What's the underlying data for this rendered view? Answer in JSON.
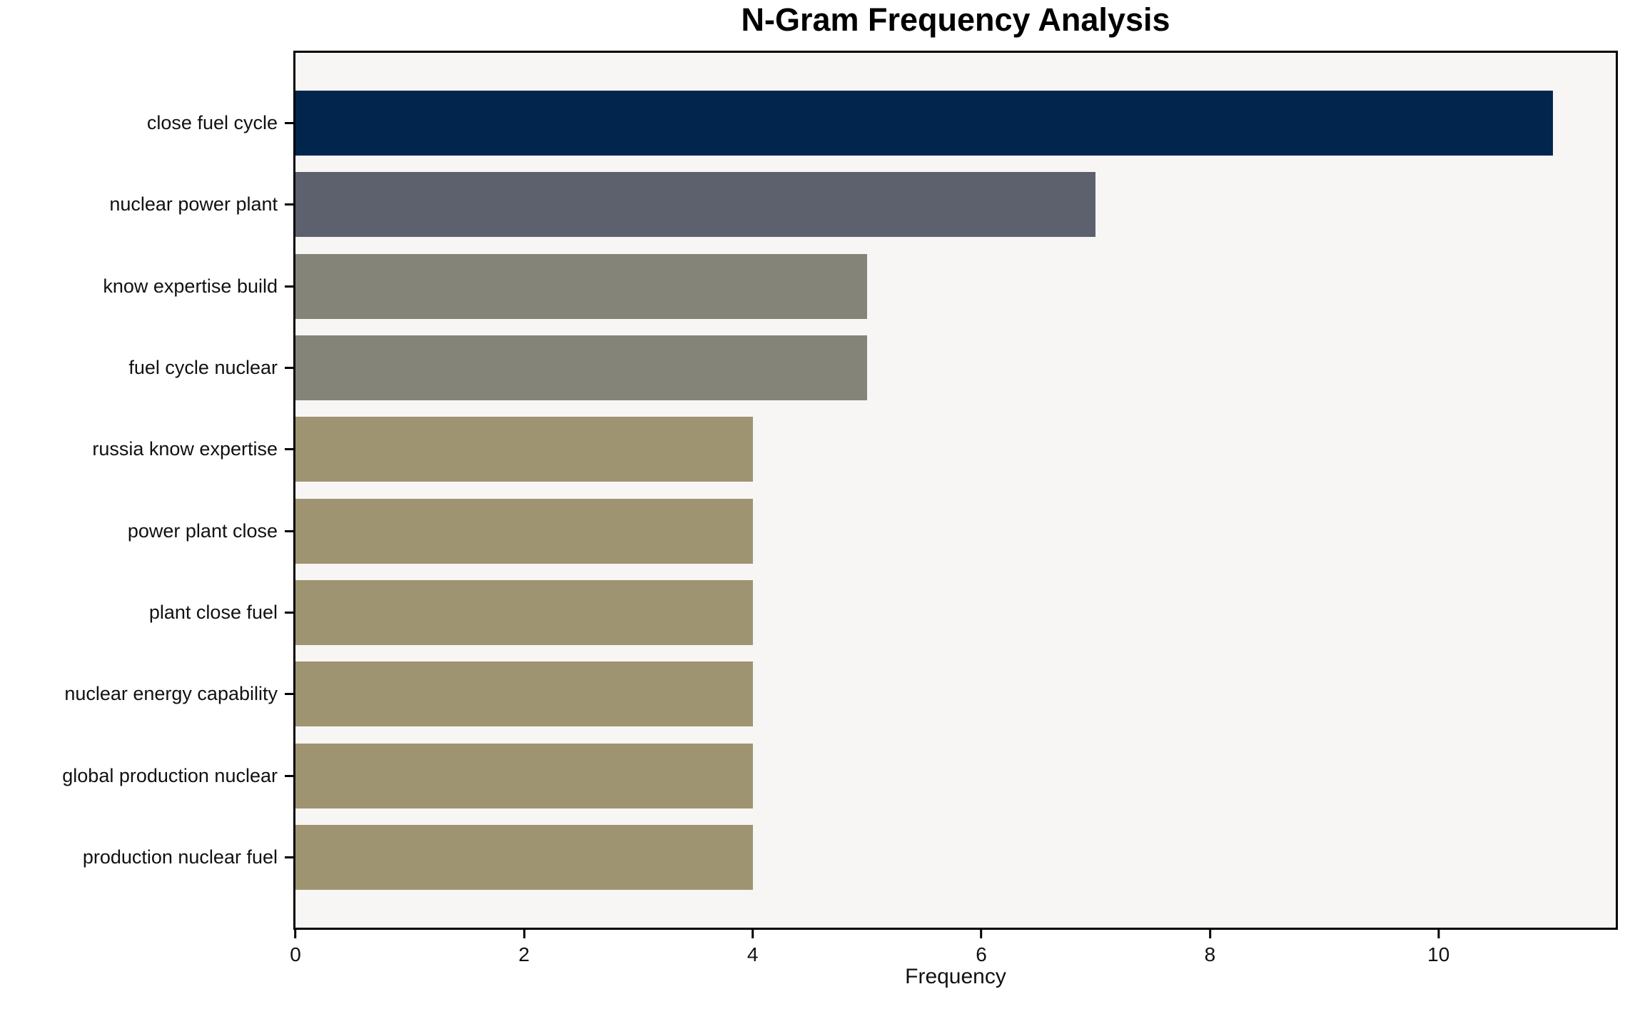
{
  "chart_data": {
    "type": "bar",
    "orientation": "horizontal",
    "title": "N-Gram Frequency Analysis",
    "xlabel": "Frequency",
    "ylabel": "",
    "categories": [
      "close fuel cycle",
      "nuclear power plant",
      "know expertise build",
      "fuel cycle nuclear",
      "russia know expertise",
      "power plant close",
      "plant close fuel",
      "nuclear energy capability",
      "global production nuclear",
      "production nuclear fuel"
    ],
    "values": [
      11,
      7,
      5,
      5,
      4,
      4,
      4,
      4,
      4,
      4
    ],
    "xlim": [
      0,
      11.55
    ],
    "xticks": [
      0,
      2,
      4,
      6,
      8,
      10
    ],
    "grid": false,
    "legend": "none",
    "bar_colors": [
      "#02254d",
      "#5d616e",
      "#858478",
      "#858478",
      "#9f9471",
      "#9f9471",
      "#9f9471",
      "#9f9471",
      "#9f9471",
      "#9f9471"
    ],
    "plot_background": "#f7f6f5",
    "figure_background": "#ffffff",
    "spine_color": "#000000",
    "text_color": "#111111"
  }
}
